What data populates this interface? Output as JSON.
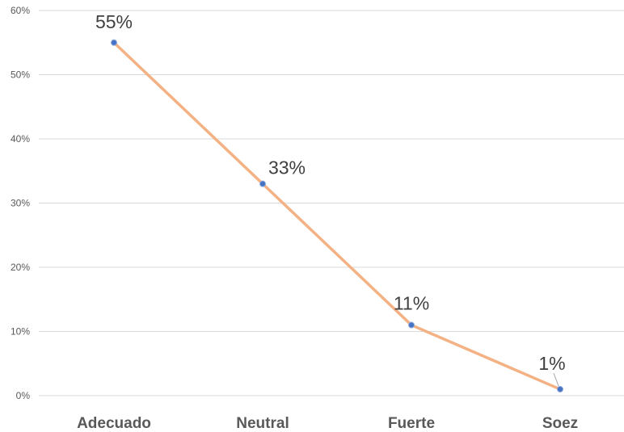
{
  "chart_data": {
    "type": "line",
    "categories": [
      "Adecuado",
      "Neutral",
      "Fuerte",
      "Soez"
    ],
    "series": [
      {
        "values": [
          55,
          33,
          11,
          1
        ],
        "color": "#F4B183",
        "marker_color": "#4472C4"
      }
    ],
    "data_labels": [
      "55%",
      "33%",
      "11%",
      "1%"
    ],
    "y_ticks": [
      "0%",
      "10%",
      "20%",
      "30%",
      "40%",
      "50%",
      "60%"
    ],
    "ylim": [
      0,
      60
    ],
    "grid": true,
    "legend": "none"
  }
}
